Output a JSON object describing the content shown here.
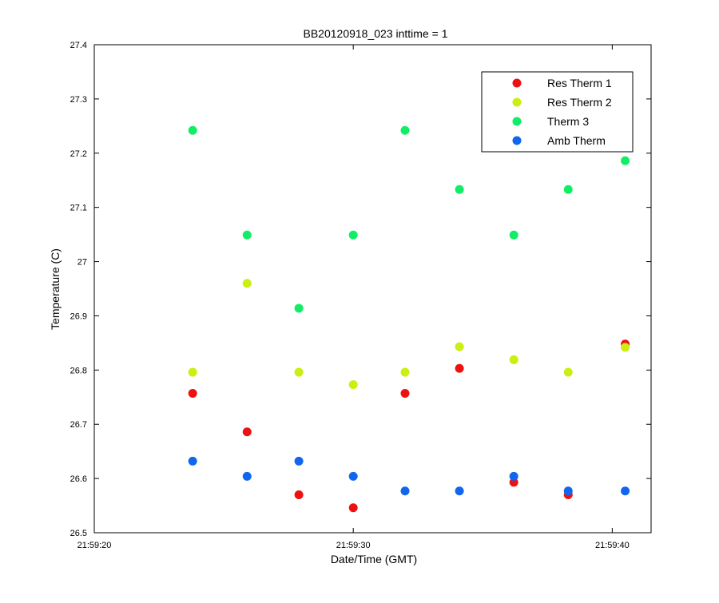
{
  "chart_data": {
    "type": "scatter",
    "title": "BB20120918_023 inttime = 1",
    "xlabel": "Date/Time (GMT)",
    "ylabel": "Temperature (C)",
    "xlim": [
      "21:59:20",
      "21:59:41.5"
    ],
    "ylim": [
      26.5,
      27.4
    ],
    "x_ticks": [
      "21:59:20",
      "21:59:30",
      "21:59:40"
    ],
    "y_ticks": [
      "26.5",
      "26.6",
      "26.7",
      "26.8",
      "26.9",
      "27",
      "27.1",
      "27.2",
      "27.3",
      "27.4"
    ],
    "grid": false,
    "legend_position": "top-right",
    "x": [
      "21:59:23.8",
      "21:59:25.9",
      "21:59:27.9",
      "21:59:30.0",
      "21:59:32.0",
      "21:59:34.1",
      "21:59:36.2",
      "21:59:38.3",
      "21:59:40.5"
    ],
    "series": [
      {
        "name": "Res Therm 1",
        "color": "#ee1111",
        "values": [
          26.757,
          26.686,
          26.57,
          26.546,
          26.757,
          26.803,
          26.593,
          26.57,
          26.848
        ]
      },
      {
        "name": "Res Therm 2",
        "color": "#ccee11",
        "values": [
          26.796,
          26.96,
          26.796,
          26.773,
          26.796,
          26.843,
          26.819,
          26.796,
          26.842
        ]
      },
      {
        "name": "Therm 3",
        "color": "#11ee66",
        "values": [
          27.242,
          27.049,
          26.914,
          27.049,
          27.242,
          27.133,
          27.049,
          27.133,
          27.186
        ]
      },
      {
        "name": "Amb Therm",
        "color": "#1166ee",
        "values": [
          26.632,
          26.604,
          26.632,
          26.604,
          26.577,
          26.577,
          26.604,
          26.577,
          26.577
        ]
      }
    ]
  }
}
